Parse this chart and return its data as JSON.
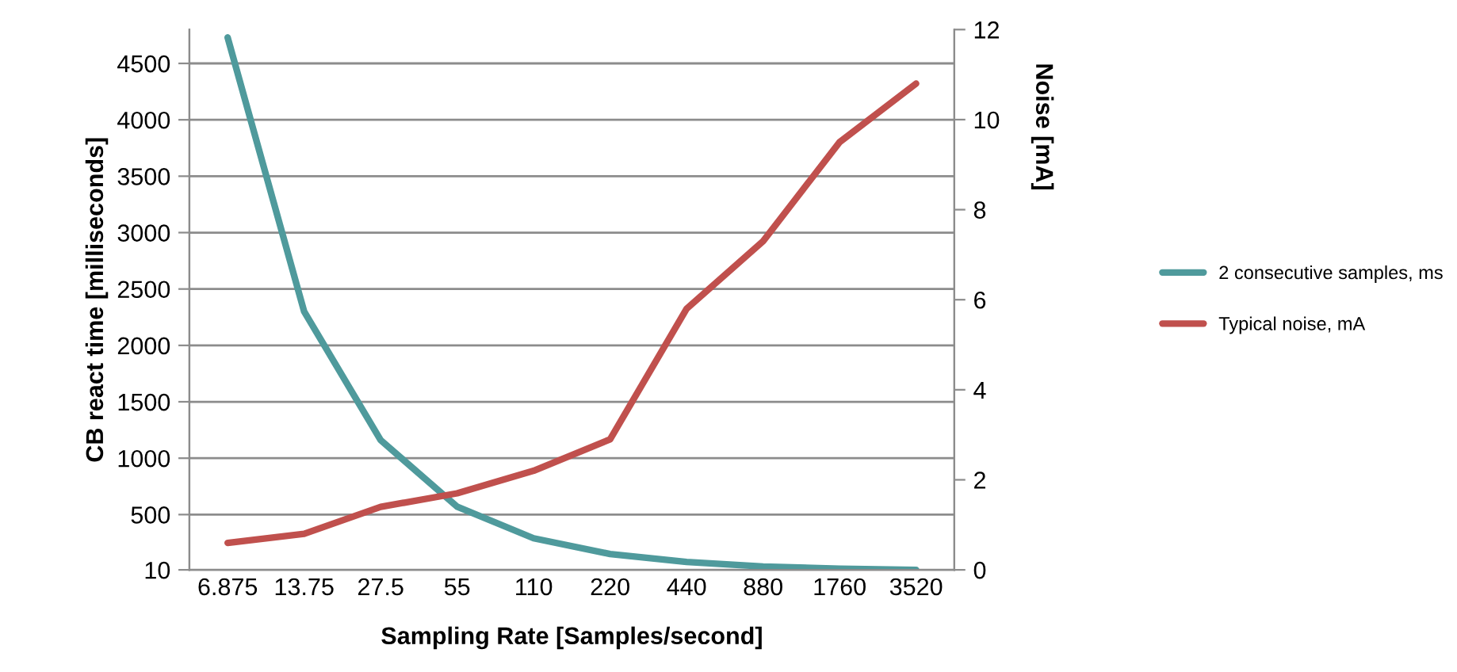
{
  "chart_data": {
    "type": "line",
    "categories": [
      "6.875",
      "13.75",
      "27.5",
      "55",
      "110",
      "220",
      "440",
      "880",
      "1760",
      "3520"
    ],
    "xlabel": "Sampling Rate [Samples/second]",
    "ylabel": "CB react time [milliseconds]",
    "y2label": "Noise [mA]",
    "series": [
      {
        "name": "2 consecutive samples, ms",
        "color": "#4f9a9c",
        "values": [
          4730,
          2300,
          1160,
          570,
          290,
          150,
          80,
          40,
          20,
          10
        ]
      },
      {
        "name": "Typical noise, mA",
        "color": "#c0504d",
        "axis": "y2",
        "values": [
          0.6,
          0.8,
          1.4,
          1.7,
          2.2,
          2.9,
          5.8,
          7.3,
          9.5,
          10.8
        ]
      }
    ],
    "ylim": [
      10,
      4800
    ],
    "yticks": [
      10,
      500,
      1000,
      1500,
      2000,
      2500,
      3000,
      3500,
      4000,
      4500
    ],
    "y2lim": [
      0,
      12
    ],
    "y2ticks": [
      0,
      2,
      4,
      6,
      8,
      10,
      12
    ],
    "grid": "y",
    "legend": "right",
    "marker": "none",
    "line_style": "solid"
  }
}
